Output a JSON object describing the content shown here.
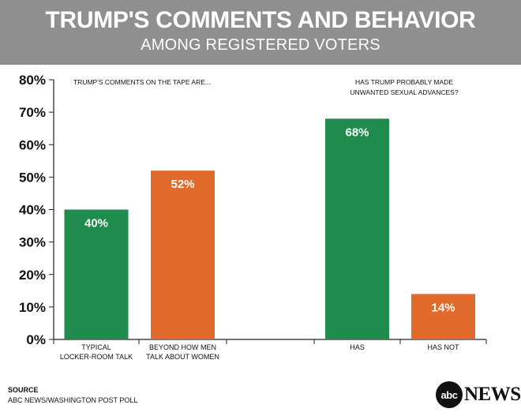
{
  "header": {
    "title": "TRUMP'S COMMENTS AND BEHAVIOR",
    "subtitle": "AMONG REGISTERED VOTERS"
  },
  "chart_data": {
    "type": "bar",
    "ylim": [
      0,
      80
    ],
    "yticks": [
      0,
      10,
      20,
      30,
      40,
      50,
      60,
      70,
      80
    ],
    "ytick_labels": [
      "0%",
      "10%",
      "20%",
      "30%",
      "40%",
      "50%",
      "60%",
      "70%",
      "80%"
    ],
    "grid": false,
    "groups": [
      {
        "heading": [
          "TRUMP'S COMMENTS ON THE TAPE ARE..."
        ],
        "bars": [
          {
            "label": [
              "TYPICAL",
              "LOCKER-ROOM TALK"
            ],
            "value": 40,
            "value_label": "40%",
            "color": "#1f8b4c"
          },
          {
            "label": [
              "BEYOND HOW MEN",
              "TALK ABOUT WOMEN"
            ],
            "value": 52,
            "value_label": "52%",
            "color": "#e06b2c"
          }
        ]
      },
      {
        "heading": [
          "HAS TRUMP PROBABLY MADE",
          "UNWANTED  SEXUAL ADVANCES?"
        ],
        "bars": [
          {
            "label": [
              "HAS"
            ],
            "value": 68,
            "value_label": "68%",
            "color": "#1f8b4c"
          },
          {
            "label": [
              "HAS NOT"
            ],
            "value": 14,
            "value_label": "14%",
            "color": "#e06b2c"
          }
        ]
      }
    ]
  },
  "footer": {
    "source_label": "SOURCE",
    "source_text": "ABC NEWS/WASHINGTON POST POLL",
    "logo_abc": "abc",
    "logo_news": "NEWS"
  }
}
